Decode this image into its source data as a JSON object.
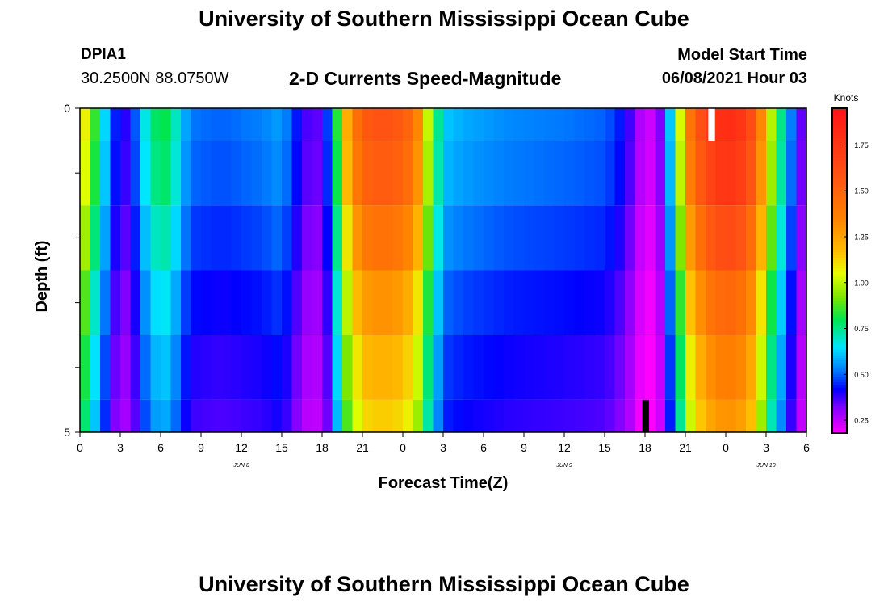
{
  "header": {
    "title": "University of Southern Mississippi Ocean Cube",
    "station": "DPIA1",
    "coordinates": "30.2500N  88.0750W",
    "chart_title": "2-D Currents Speed-Magnitude",
    "model_start_label": "Model Start Time",
    "model_start_value": "06/08/2021 Hour 03"
  },
  "footer": {
    "title": "University of Southern Mississippi Ocean Cube"
  },
  "chart_data": {
    "type": "heatmap",
    "title": "2-D Currents Speed-Magnitude",
    "xlabel": "Forecast Time(Z)",
    "ylabel": "Depth (ft)",
    "colorbar_label": "Knots",
    "xlim": [
      0,
      54
    ],
    "ylim": [
      0,
      5
    ],
    "x_tick_labels": [
      "0",
      "3",
      "6",
      "9",
      "12",
      "15",
      "18",
      "21",
      "0",
      "3",
      "6",
      "9",
      "12",
      "15",
      "18",
      "21",
      "0",
      "3",
      "6"
    ],
    "y_tick_labels": [
      "0",
      "5"
    ],
    "date_labels": [
      {
        "hour": 12,
        "text": "JUN 8"
      },
      {
        "hour": 36,
        "text": "JUN 9"
      },
      {
        "hour": 51,
        "text": "JUN 10"
      }
    ],
    "colorbar": {
      "min": 0.18,
      "max": 1.95,
      "tick_labels": [
        "0.25",
        "0.50",
        "0.75",
        "1.00",
        "1.25",
        "1.50",
        "1.75"
      ],
      "tick_values": [
        0.25,
        0.5,
        0.75,
        1.0,
        1.25,
        1.5,
        1.75
      ]
    },
    "depth_layers": 5,
    "surface_row": "row 0 spans depth 0-0.5 ft; rows 1-5 span 1 ft each",
    "time_step_hours": 0.75,
    "key_points": [
      {
        "hour": 0,
        "speed": 1.2
      },
      {
        "hour": 0.75,
        "speed": 0.95
      },
      {
        "hour": 1.5,
        "speed": 0.75
      },
      {
        "hour": 2.3,
        "speed": 0.5
      },
      {
        "hour": 3.0,
        "speed": 0.38
      },
      {
        "hour": 3.8,
        "speed": 0.4
      },
      {
        "hour": 4.5,
        "speed": 0.6
      },
      {
        "hour": 5.3,
        "speed": 0.75
      },
      {
        "hour": 6.0,
        "speed": 0.82
      },
      {
        "hour": 6.8,
        "speed": 0.78
      },
      {
        "hour": 7.5,
        "speed": 0.62
      },
      {
        "hour": 8.3,
        "speed": 0.52
      },
      {
        "hour": 10.5,
        "speed": 0.5
      },
      {
        "hour": 13.5,
        "speed": 0.53
      },
      {
        "hour": 15.0,
        "speed": 0.57
      },
      {
        "hour": 16.0,
        "speed": 0.45
      },
      {
        "hour": 17.0,
        "speed": 0.35
      },
      {
        "hour": 18.0,
        "speed": 0.35
      },
      {
        "hour": 18.8,
        "speed": 0.6
      },
      {
        "hour": 19.5,
        "speed": 1.1
      },
      {
        "hour": 20.3,
        "speed": 1.35
      },
      {
        "hour": 21.0,
        "speed": 1.55
      },
      {
        "hour": 22.5,
        "speed": 1.6
      },
      {
        "hour": 24.0,
        "speed": 1.55
      },
      {
        "hour": 25.0,
        "speed": 1.4
      },
      {
        "hour": 25.5,
        "speed": 1.15
      },
      {
        "hour": 26.3,
        "speed": 0.85
      },
      {
        "hour": 27.0,
        "speed": 0.62
      },
      {
        "hour": 28.5,
        "speed": 0.58
      },
      {
        "hour": 32.0,
        "speed": 0.54
      },
      {
        "hour": 36.0,
        "speed": 0.52
      },
      {
        "hour": 39.0,
        "speed": 0.5
      },
      {
        "hour": 40.0,
        "speed": 0.45
      },
      {
        "hour": 40.8,
        "speed": 0.38
      },
      {
        "hour": 41.5,
        "speed": 0.28
      },
      {
        "hour": 42.3,
        "speed": 0.23
      },
      {
        "hour": 43.0,
        "speed": 0.28
      },
      {
        "hour": 43.5,
        "speed": 0.45
      },
      {
        "hour": 44.3,
        "speed": 0.8
      },
      {
        "hour": 45.0,
        "speed": 1.3
      },
      {
        "hour": 45.8,
        "speed": 1.55
      },
      {
        "hour": 47.0,
        "speed": 1.75
      },
      {
        "hour": 48.0,
        "speed": 1.82
      },
      {
        "hour": 49.0,
        "speed": 1.78
      },
      {
        "hour": 50.0,
        "speed": 1.6
      },
      {
        "hour": 50.6,
        "speed": 1.35
      },
      {
        "hour": 51.2,
        "speed": 1.05
      },
      {
        "hour": 51.8,
        "speed": 0.85
      },
      {
        "hour": 52.5,
        "speed": 0.65
      },
      {
        "hour": 53.2,
        "speed": 0.42
      },
      {
        "hour": 54.0,
        "speed": 0.28
      }
    ],
    "depth_factors": [
      1.0,
      0.97,
      0.9,
      0.82,
      0.76,
      0.72
    ],
    "missing_cells": [
      {
        "hour": 46.7,
        "layer": 0,
        "color": "#ffffff"
      },
      {
        "hour": 41.8,
        "layer": 5,
        "color": "#000000"
      }
    ]
  }
}
